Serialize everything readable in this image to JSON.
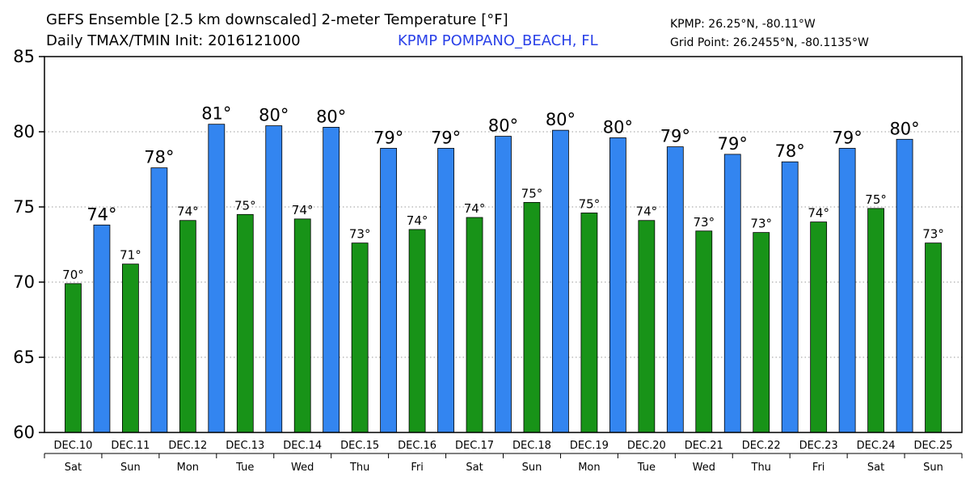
{
  "header": {
    "title_line1": "GEFS Ensemble [2.5 km downscaled] 2-meter Temperature [°F]",
    "title_line2": "Daily TMAX/TMIN Init: 2016121000",
    "station": "KPMP POMPANO_BEACH, FL",
    "coords_station": "KPMP: 26.25°N, -80.11°W",
    "coords_grid": "Grid Point: 26.2455°N, -80.1135°W"
  },
  "colors": {
    "tmax": "#3385f0",
    "tmin": "#189318",
    "grid": "#999999"
  },
  "chart_data": {
    "type": "bar",
    "ylim": [
      60,
      85
    ],
    "yticks": [
      60,
      65,
      70,
      75,
      80,
      85
    ],
    "grid": true,
    "days": [
      {
        "date": "DEC.10",
        "dow": "Sat"
      },
      {
        "date": "DEC.11",
        "dow": "Sun"
      },
      {
        "date": "DEC.12",
        "dow": "Mon"
      },
      {
        "date": "DEC.13",
        "dow": "Tue"
      },
      {
        "date": "DEC.14",
        "dow": "Wed"
      },
      {
        "date": "DEC.15",
        "dow": "Thu"
      },
      {
        "date": "DEC.16",
        "dow": "Fri"
      },
      {
        "date": "DEC.17",
        "dow": "Sat"
      },
      {
        "date": "DEC.18",
        "dow": "Sun"
      },
      {
        "date": "DEC.19",
        "dow": "Mon"
      },
      {
        "date": "DEC.20",
        "dow": "Tue"
      },
      {
        "date": "DEC.21",
        "dow": "Wed"
      },
      {
        "date": "DEC.22",
        "dow": "Thu"
      },
      {
        "date": "DEC.23",
        "dow": "Fri"
      },
      {
        "date": "DEC.24",
        "dow": "Sat"
      },
      {
        "date": "DEC.25",
        "dow": "Sun"
      }
    ],
    "series": [
      {
        "name": "TMIN",
        "values": [
          69.9,
          71.2,
          74.1,
          74.5,
          74.2,
          72.6,
          73.5,
          74.3,
          75.3,
          74.6,
          74.1,
          73.4,
          73.3,
          74.0,
          74.9,
          72.6
        ],
        "labels": [
          "70°",
          "71°",
          "74°",
          "75°",
          "74°",
          "73°",
          "74°",
          "74°",
          "75°",
          "75°",
          "74°",
          "73°",
          "73°",
          "74°",
          "75°",
          "73°"
        ]
      },
      {
        "name": "TMAX",
        "values": [
          73.8,
          77.6,
          80.5,
          80.4,
          80.3,
          78.9,
          78.9,
          79.7,
          80.1,
          79.6,
          79.0,
          78.5,
          78.0,
          78.9,
          79.5
        ],
        "labels": [
          "74°",
          "78°",
          "81°",
          "80°",
          "80°",
          "79°",
          "79°",
          "80°",
          "80°",
          "80°",
          "79°",
          "79°",
          "78°",
          "79°",
          "80°"
        ]
      }
    ]
  }
}
